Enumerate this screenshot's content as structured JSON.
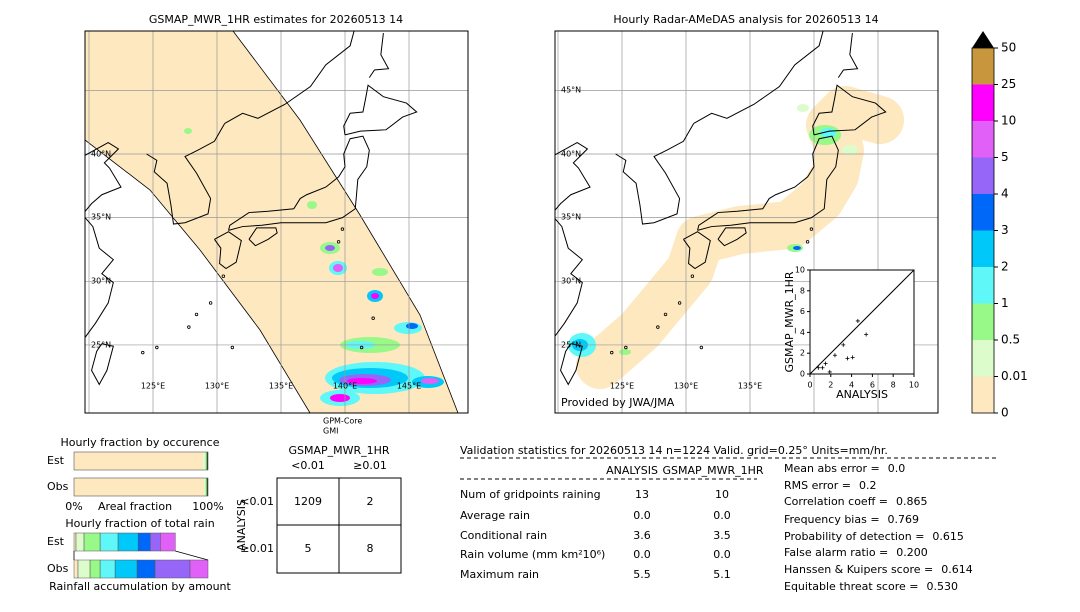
{
  "maps": [
    {
      "title": "GSMAP_MWR_1HR estimates for 20260513 14",
      "lat_labels": [
        "40°N",
        "35°N",
        "30°N",
        "25°N"
      ],
      "lon_labels": [
        "125°E",
        "130°E",
        "135°E",
        "140°E",
        "145°E"
      ],
      "satellite": [
        "GPM-Core",
        "GMI"
      ]
    },
    {
      "title": "Hourly Radar-AMeDAS analysis for 20260513 14",
      "lat_labels": [
        "45°N",
        "40°N",
        "35°N",
        "30°N",
        "25°N"
      ],
      "lon_labels": [
        "125°E",
        "130°E",
        "135°E"
      ],
      "credit": "Provided by JWA/JMA"
    }
  ],
  "chart_data": [
    {
      "type": "colorbar",
      "boundaries": [
        0,
        0.01,
        0.5,
        1,
        2,
        3,
        4,
        5,
        10,
        25,
        50
      ],
      "colors": [
        "#fde8c0",
        "#dcfccb",
        "#98f888",
        "#5ff7f7",
        "#00c8f8",
        "#0068f8",
        "#9666f8",
        "#e060f8",
        "#ff00ff",
        "#c8963c"
      ],
      "extend_color": "#000000"
    },
    {
      "type": "scatter",
      "xlabel": "ANALYSIS",
      "ylabel": "GSMAP_MWR_1HR",
      "x": [
        4.6,
        5.4,
        4.1,
        3.6,
        3.2,
        2.4,
        1.5,
        1.2,
        0.8,
        1.9
      ],
      "values": [
        5.1,
        3.8,
        1.6,
        1.5,
        2.8,
        1.8,
        1.0,
        0.6,
        0.6,
        0.2
      ],
      "color": "#000000",
      "xlim": [
        0,
        10
      ],
      "ylim": [
        0,
        10
      ],
      "xticks": [
        0,
        2,
        4,
        6,
        8,
        10
      ],
      "yticks": [
        0,
        2,
        4,
        6,
        8,
        10
      ]
    },
    {
      "type": "stacked_barh",
      "title": "Hourly fraction by occurence",
      "xlabel": "Areal fraction",
      "categories": [
        "Est",
        "Obs"
      ],
      "series": [
        {
          "color": "#fde8c0",
          "values": [
            96.5,
            97.0
          ]
        },
        {
          "color": "#dcfccb",
          "values": [
            1.5,
            1.0
          ]
        },
        {
          "color": "#98f888",
          "values": [
            1.0,
            1.0
          ]
        },
        {
          "color": "#2a3a2a",
          "values": [
            1.0,
            1.0
          ]
        }
      ],
      "xlim": [
        0,
        100
      ],
      "xticks": [
        {
          "value": 0,
          "label": "0%"
        },
        {
          "value": 100,
          "label": "100%"
        }
      ]
    },
    {
      "type": "stacked_barh",
      "title": "Hourly fraction of total rain",
      "xlabel": "Rainfall accumulation by amount",
      "categories": [
        "Est",
        "Obs"
      ],
      "series": [
        {
          "color": "#fde8c0",
          "values": [
            1.5,
            3.0
          ]
        },
        {
          "color": "#dcfccb",
          "values": [
            6.0,
            9.0
          ]
        },
        {
          "color": "#98f888",
          "values": [
            12.0,
            7.5
          ]
        },
        {
          "color": "#5ff7f7",
          "values": [
            13.4,
            11.2
          ]
        },
        {
          "color": "#00c8f8",
          "values": [
            15.0,
            16.4
          ]
        },
        {
          "color": "#0068f8",
          "values": [
            9.0,
            13.4
          ]
        },
        {
          "color": "#9666f8",
          "values": [
            7.5,
            26.1
          ]
        },
        {
          "color": "#e060f8",
          "values": [
            11.2,
            13.4
          ]
        }
      ],
      "xlim": [
        0,
        100
      ]
    }
  ],
  "contingency": {
    "title": "GSMAP_MWR_1HR",
    "col_labels": [
      "<0.01",
      "≥0.01"
    ],
    "row_title": "ANALYSIS",
    "row_labels": [
      "<0.01",
      "≥0.01"
    ],
    "cells": [
      [
        "1209",
        "2"
      ],
      [
        "5",
        "8"
      ]
    ]
  },
  "validation": {
    "header": "Validation statistics for 20260513 14  n=1224 Valid. grid=0.25° Units=mm/hr.",
    "columns": [
      "ANALYSIS",
      "GSMAP_MWR_1HR"
    ],
    "rows": [
      {
        "label": "Num of gridpoints raining",
        "values": [
          "13",
          "10"
        ]
      },
      {
        "label": "Average rain",
        "values": [
          "0.0",
          "0.0"
        ]
      },
      {
        "label": "Conditional rain",
        "values": [
          "3.6",
          "3.5"
        ]
      },
      {
        "label": "Rain volume (mm km²10⁶)",
        "values": [
          "0.0",
          "0.0"
        ]
      },
      {
        "label": "Maximum rain",
        "values": [
          "5.5",
          "5.1"
        ]
      }
    ],
    "scores": [
      {
        "label": "Mean abs error =",
        "value": "0.0"
      },
      {
        "label": "RMS error =",
        "value": "0.2"
      },
      {
        "label": "Correlation coeff =",
        "value": "0.865"
      },
      {
        "label": "Frequency bias =",
        "value": "0.769"
      },
      {
        "label": "Probability of detection =",
        "value": "0.615"
      },
      {
        "label": "False alarm ratio =",
        "value": "0.200"
      },
      {
        "label": "Hanssen & Kuipers score =",
        "value": "0.614"
      },
      {
        "label": "Equitable threat score =",
        "value": "0.530"
      }
    ]
  }
}
